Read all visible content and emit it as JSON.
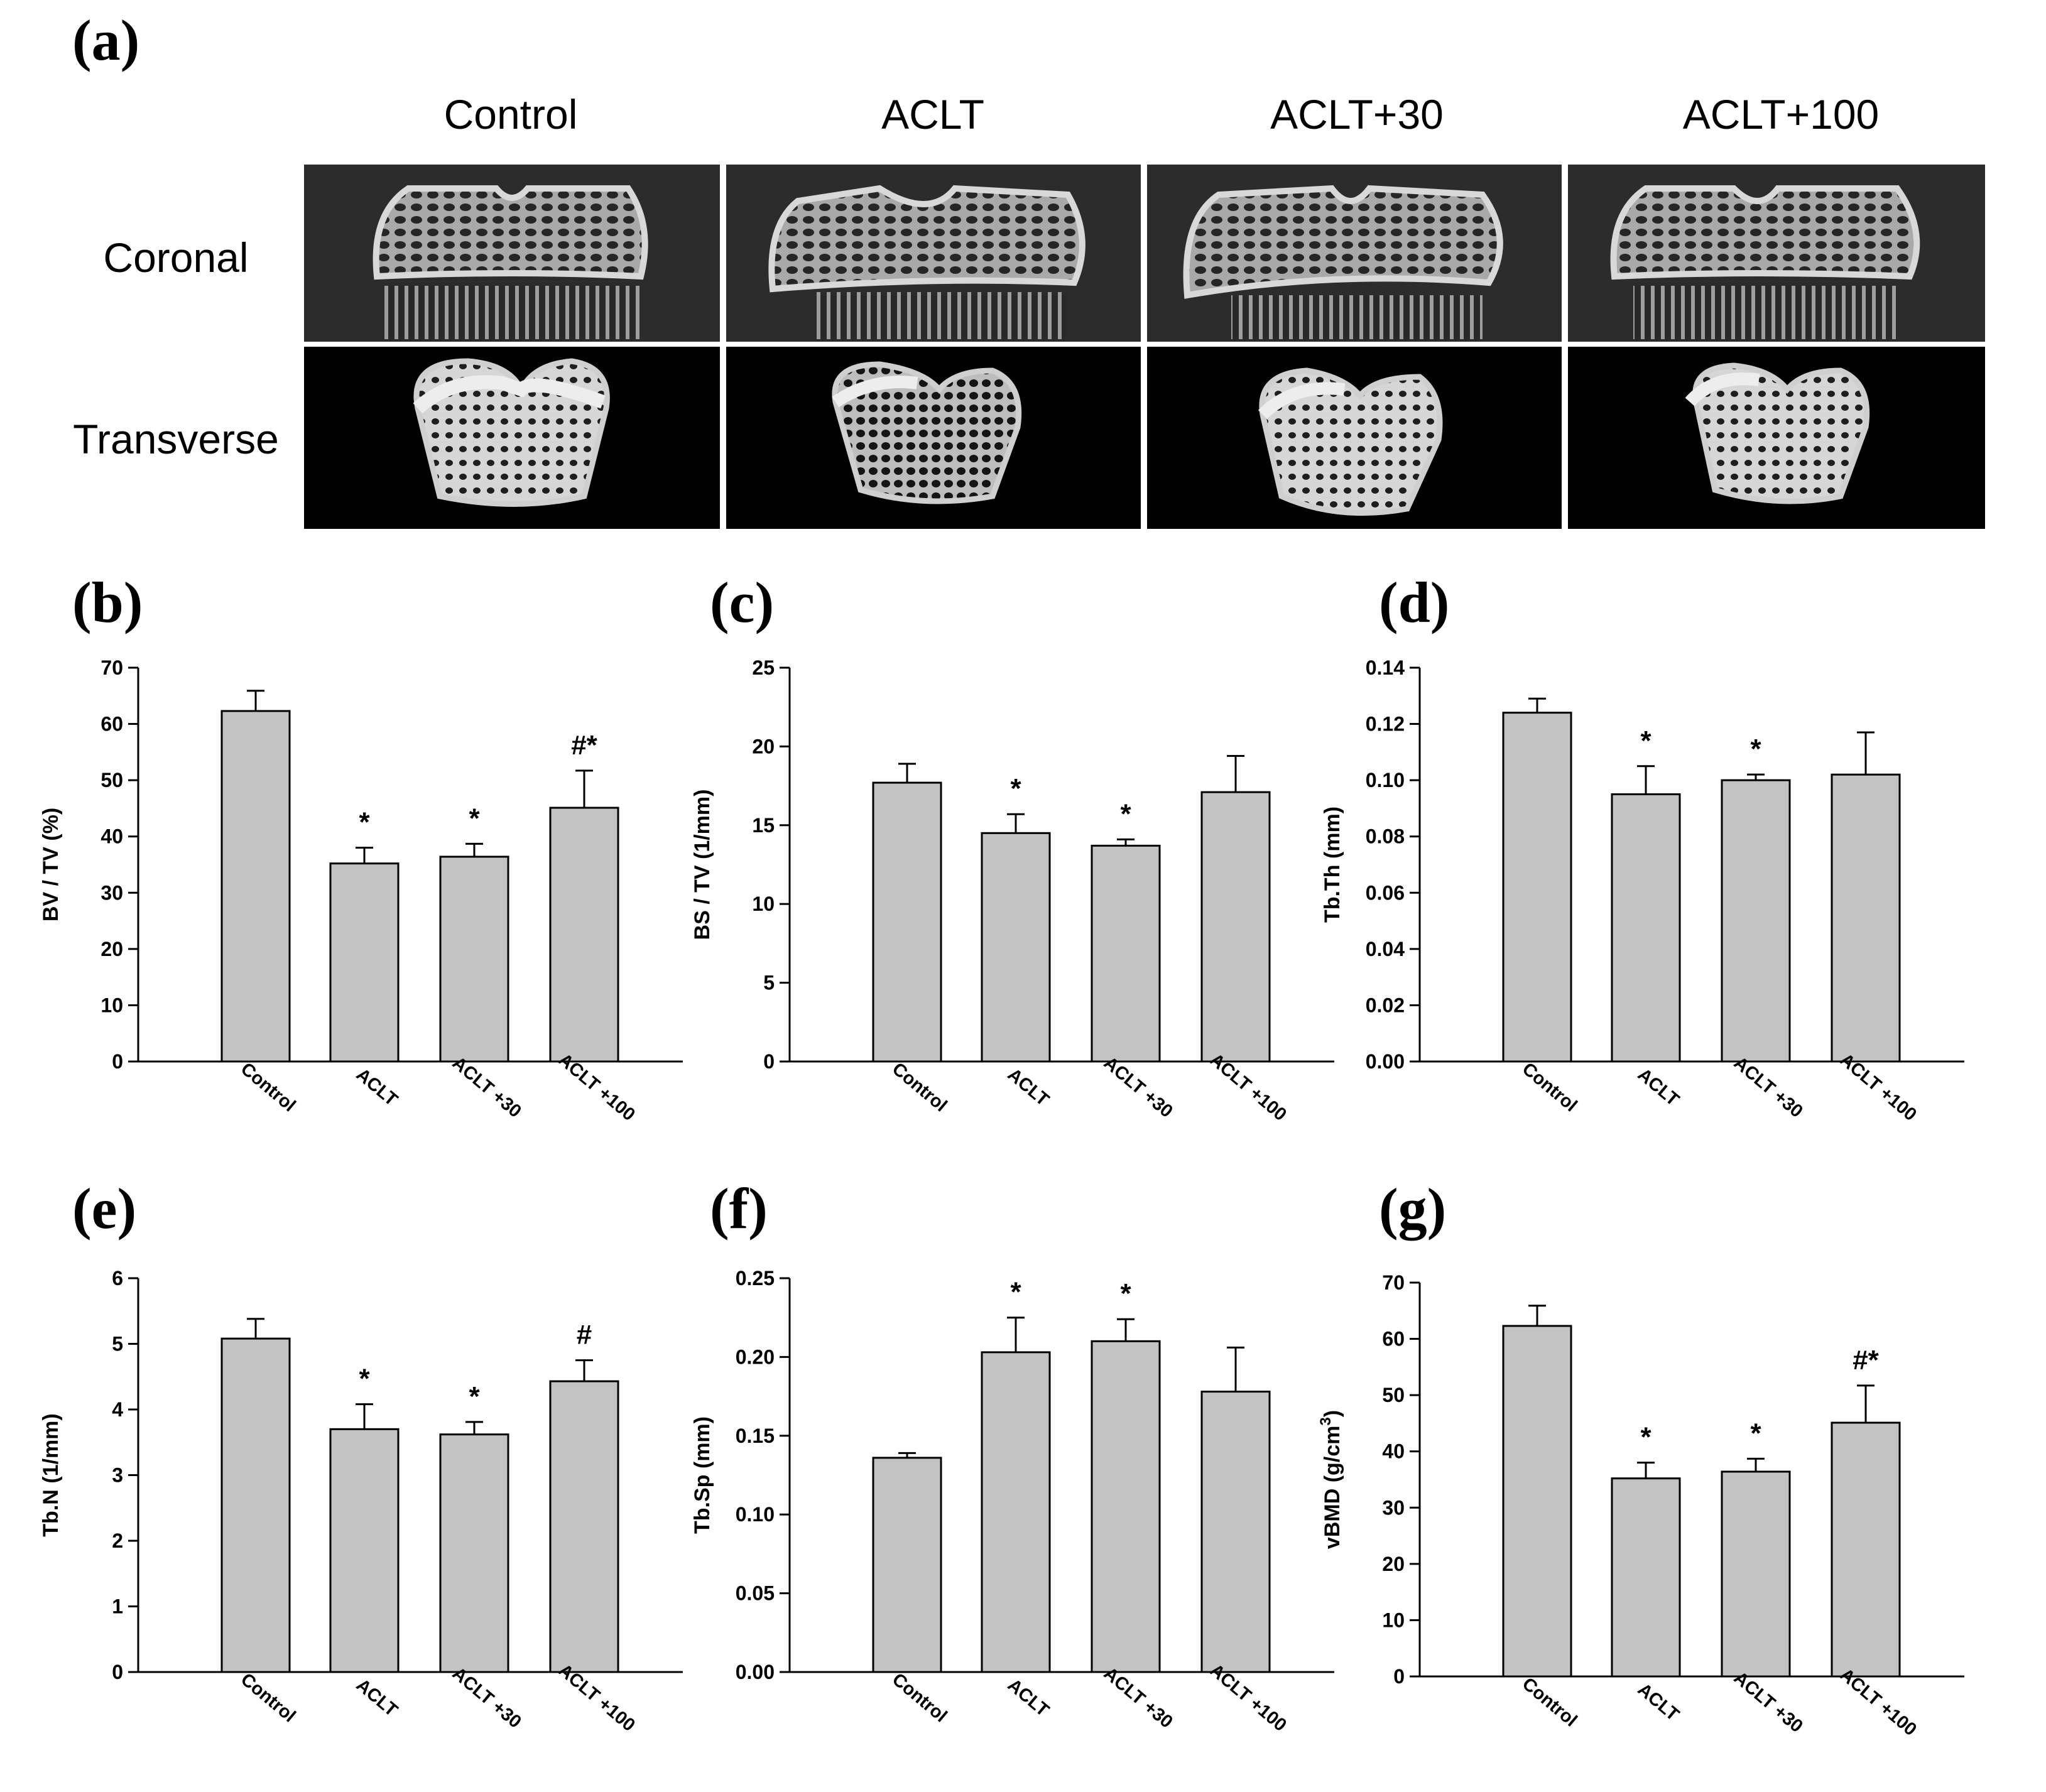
{
  "panel_a": {
    "letter": "(a)",
    "columns": [
      "Control",
      "ACLT",
      "ACLT+30",
      "ACLT+100"
    ],
    "rows": [
      "Coronal",
      "Transverse"
    ]
  },
  "chart_data": [
    {
      "letter": "(b)",
      "type": "bar",
      "categories": [
        "Control",
        "ACLT",
        "ACLT +30",
        "ACLT +100"
      ],
      "values": [
        62.3,
        35.2,
        36.4,
        45.1
      ],
      "errors": [
        3.6,
        2.8,
        2.3,
        6.6
      ],
      "annotations": [
        "",
        "*",
        "*",
        "#*"
      ],
      "ylabel": "BV / TV (%)",
      "ylim": [
        0,
        70
      ],
      "yticks": [
        "0",
        "10",
        "20",
        "30",
        "40",
        "50",
        "60",
        "70"
      ],
      "bar_color": "#c3c3c3"
    },
    {
      "letter": "(c)",
      "type": "bar",
      "categories": [
        "Control",
        "ACLT",
        "ACLT +30",
        "ACLT +100"
      ],
      "values": [
        17.7,
        14.5,
        13.7,
        17.1
      ],
      "errors": [
        1.2,
        1.2,
        0.4,
        2.3
      ],
      "annotations": [
        "",
        "*",
        "*",
        ""
      ],
      "ylabel": "BS / TV (1/mm)",
      "ylim": [
        0,
        25
      ],
      "yticks": [
        "0",
        "5",
        "10",
        "15",
        "20",
        "25"
      ],
      "bar_color": "#c3c3c3"
    },
    {
      "letter": "(d)",
      "type": "bar",
      "categories": [
        "Control",
        "ACLT",
        "ACLT +30",
        "ACLT +100"
      ],
      "values": [
        0.124,
        0.095,
        0.1,
        0.102
      ],
      "errors": [
        0.005,
        0.01,
        0.002,
        0.015
      ],
      "annotations": [
        "",
        "*",
        "*",
        ""
      ],
      "ylabel": "Tb.Th (mm)",
      "ylim": [
        0,
        0.14
      ],
      "yticks": [
        "0.00",
        "0.02",
        "0.04",
        "0.06",
        "0.08",
        "0.10",
        "0.12",
        "0.14"
      ],
      "bar_color": "#c3c3c3"
    },
    {
      "letter": "(e)",
      "type": "bar",
      "categories": [
        "Control",
        "ACLT",
        "ACLT +30",
        "ACLT +100"
      ],
      "values": [
        5.08,
        3.7,
        3.62,
        4.43
      ],
      "errors": [
        0.3,
        0.38,
        0.19,
        0.32
      ],
      "annotations": [
        "",
        "*",
        "*",
        "#"
      ],
      "ylabel": "Tb.N (1/mm)",
      "ylim": [
        0,
        6
      ],
      "yticks": [
        "0",
        "1",
        "2",
        "3",
        "4",
        "5",
        "6"
      ],
      "bar_color": "#c3c3c3"
    },
    {
      "letter": "(f)",
      "type": "bar",
      "categories": [
        "Control",
        "ACLT",
        "ACLT +30",
        "ACLT +100"
      ],
      "values": [
        0.136,
        0.203,
        0.21,
        0.178
      ],
      "errors": [
        0.003,
        0.022,
        0.014,
        0.028
      ],
      "annotations": [
        "",
        "*",
        "*",
        ""
      ],
      "ylabel": "Tb.Sp (mm)",
      "ylim": [
        0,
        0.25
      ],
      "yticks": [
        "0.00",
        "0.05",
        "0.10",
        "0.15",
        "0.20",
        "0.25"
      ],
      "bar_color": "#c3c3c3"
    },
    {
      "letter": "(g)",
      "type": "bar",
      "categories": [
        "Control",
        "ACLT",
        "ACLT +30",
        "ACLT +100"
      ],
      "values": [
        62.3,
        35.2,
        36.4,
        45.1
      ],
      "errors": [
        3.6,
        2.8,
        2.3,
        6.6
      ],
      "annotations": [
        "",
        "*",
        "*",
        "#*"
      ],
      "ylabel": "vBMD (g/cm",
      "ylabel_sup": "3",
      "ylabel_end": ")",
      "ylim": [
        0,
        70
      ],
      "yticks": [
        "0",
        "10",
        "20",
        "30",
        "40",
        "50",
        "60",
        "70"
      ],
      "bar_color": "#c3c3c3"
    }
  ]
}
